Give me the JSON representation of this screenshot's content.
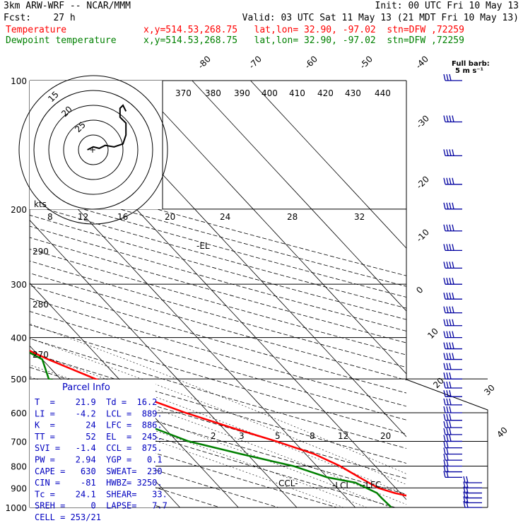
{
  "header": {
    "model": "3km ARW-WRF -- NCAR/MMM",
    "init": "Init: 00 UTC Fri 10 May 13",
    "fcst": "Fcst:    27 h",
    "valid": "Valid: 03 UTC Sat 11 May 13 (21 MDT Fri 10 May 13)",
    "temp_label": "Temperature",
    "dew_label": "Dewpoint temperature",
    "temp_info": "x,y=514.53,268.75   lat,lon= 32.90, -97.02  stn=DFW ,72259",
    "dew_info": "x,y=514.53,268.75   lat,lon= 32.90, -97.02  stn=DFW ,72259"
  },
  "barb_legend": {
    "line1": "Full barb:",
    "line2": "5 m s⁻¹"
  },
  "parcel_info": {
    "title": "Parcel Info",
    "rows": [
      "T  =    21.9  Td =  16.2",
      "LI =    -4.2  LCL =  889.",
      "K  =      24  LFC =  886.",
      "TT =      52  EL  =  245.",
      "SVI =   -1.4  CCL =  875.",
      "PW =    2.94  YGP =   0.1",
      "CAPE =   630  SWEAT=  230",
      "CIN =    -81  HWBZ= 3250.",
      "Tc =    24.1  SHEAR=   33.",
      "SREH =     0  LAPSE=   7.7",
      "CELL = 253/21"
    ]
  },
  "hodograph": {
    "unit": "kts",
    "ring_labels": [
      "15",
      "20",
      "25"
    ],
    "points_kts": [
      [
        -2,
        0
      ],
      [
        0,
        1
      ],
      [
        2,
        0.5
      ],
      [
        4,
        1.5
      ],
      [
        7,
        1
      ],
      [
        10,
        2
      ],
      [
        11,
        5
      ],
      [
        11,
        9
      ],
      [
        9,
        11
      ],
      [
        9,
        14
      ],
      [
        10,
        15
      ],
      [
        11,
        13
      ]
    ]
  },
  "chart_data": {
    "type": "skew-t",
    "pressure_ticks": [
      100,
      200,
      300,
      400,
      500,
      600,
      700,
      800,
      900,
      1000
    ],
    "temp_labels_top": [
      -80,
      -70,
      -60,
      -50,
      -40
    ],
    "temp_labels_right": [
      -30,
      -20,
      -10,
      0,
      10,
      20,
      30,
      40
    ],
    "theta_labels": [
      370,
      380,
      390,
      400,
      410,
      420,
      430,
      440
    ],
    "theta_labels_left": [
      290,
      280,
      270
    ],
    "mixing_ratio_labels": [
      "2",
      "3",
      "5",
      "8",
      "12",
      "20"
    ],
    "inset_temp_labels": [
      8,
      12,
      16,
      20,
      24,
      28,
      32
    ],
    "temperature_c": [
      [
        1000,
        24.5
      ],
      [
        950,
        22
      ],
      [
        925,
        19
      ],
      [
        900,
        17
      ],
      [
        850,
        15.5
      ],
      [
        800,
        14
      ],
      [
        750,
        11.5
      ],
      [
        700,
        7
      ],
      [
        650,
        1.5
      ],
      [
        600,
        -4
      ],
      [
        550,
        -9
      ],
      [
        500,
        -14
      ],
      [
        450,
        -19
      ],
      [
        400,
        -23.5
      ],
      [
        350,
        -29
      ],
      [
        300,
        -35
      ],
      [
        250,
        -42
      ],
      [
        225,
        -45
      ],
      [
        200,
        -49
      ],
      [
        175,
        -55
      ],
      [
        150,
        -60
      ],
      [
        125,
        -63
      ],
      [
        110,
        -66
      ],
      [
        100,
        -69
      ]
    ],
    "dewpoint_c": [
      [
        1000,
        16.2
      ],
      [
        950,
        16
      ],
      [
        925,
        16
      ],
      [
        900,
        15
      ],
      [
        875,
        14
      ],
      [
        850,
        10
      ],
      [
        800,
        6
      ],
      [
        750,
        -1
      ],
      [
        700,
        -8
      ],
      [
        650,
        -12
      ],
      [
        600,
        -14
      ],
      [
        550,
        -16
      ],
      [
        500,
        -22
      ],
      [
        450,
        -20
      ],
      [
        400,
        -23.5
      ],
      [
        350,
        -32
      ],
      [
        300,
        -39
      ],
      [
        250,
        -48
      ],
      [
        225,
        -53
      ],
      [
        200,
        -60
      ],
      [
        175,
        -65
      ],
      [
        150,
        -71
      ],
      [
        125,
        -77
      ],
      [
        110,
        -79
      ],
      [
        100,
        -82
      ]
    ],
    "level_labels": [
      {
        "label": "EL",
        "p": 245
      },
      {
        "label": "CCL",
        "p": 875
      },
      {
        "label": "LCL",
        "p": 889
      },
      {
        "label": "LFC",
        "p": 886
      }
    ],
    "wind_profile_kts": [
      {
        "p": 1000,
        "spd": 15,
        "dir": 160
      },
      {
        "p": 925,
        "spd": 20,
        "dir": 170
      },
      {
        "p": 850,
        "spd": 20,
        "dir": 190
      },
      {
        "p": 700,
        "spd": 25,
        "dir": 240
      },
      {
        "p": 500,
        "spd": 30,
        "dir": 250
      },
      {
        "p": 400,
        "spd": 40,
        "dir": 255
      },
      {
        "p": 300,
        "spd": 55,
        "dir": 260
      },
      {
        "p": 250,
        "spd": 60,
        "dir": 260
      },
      {
        "p": 200,
        "spd": 55,
        "dir": 255
      },
      {
        "p": 150,
        "spd": 45,
        "dir": 250
      },
      {
        "p": 100,
        "spd": 30,
        "dir": 250
      }
    ]
  }
}
